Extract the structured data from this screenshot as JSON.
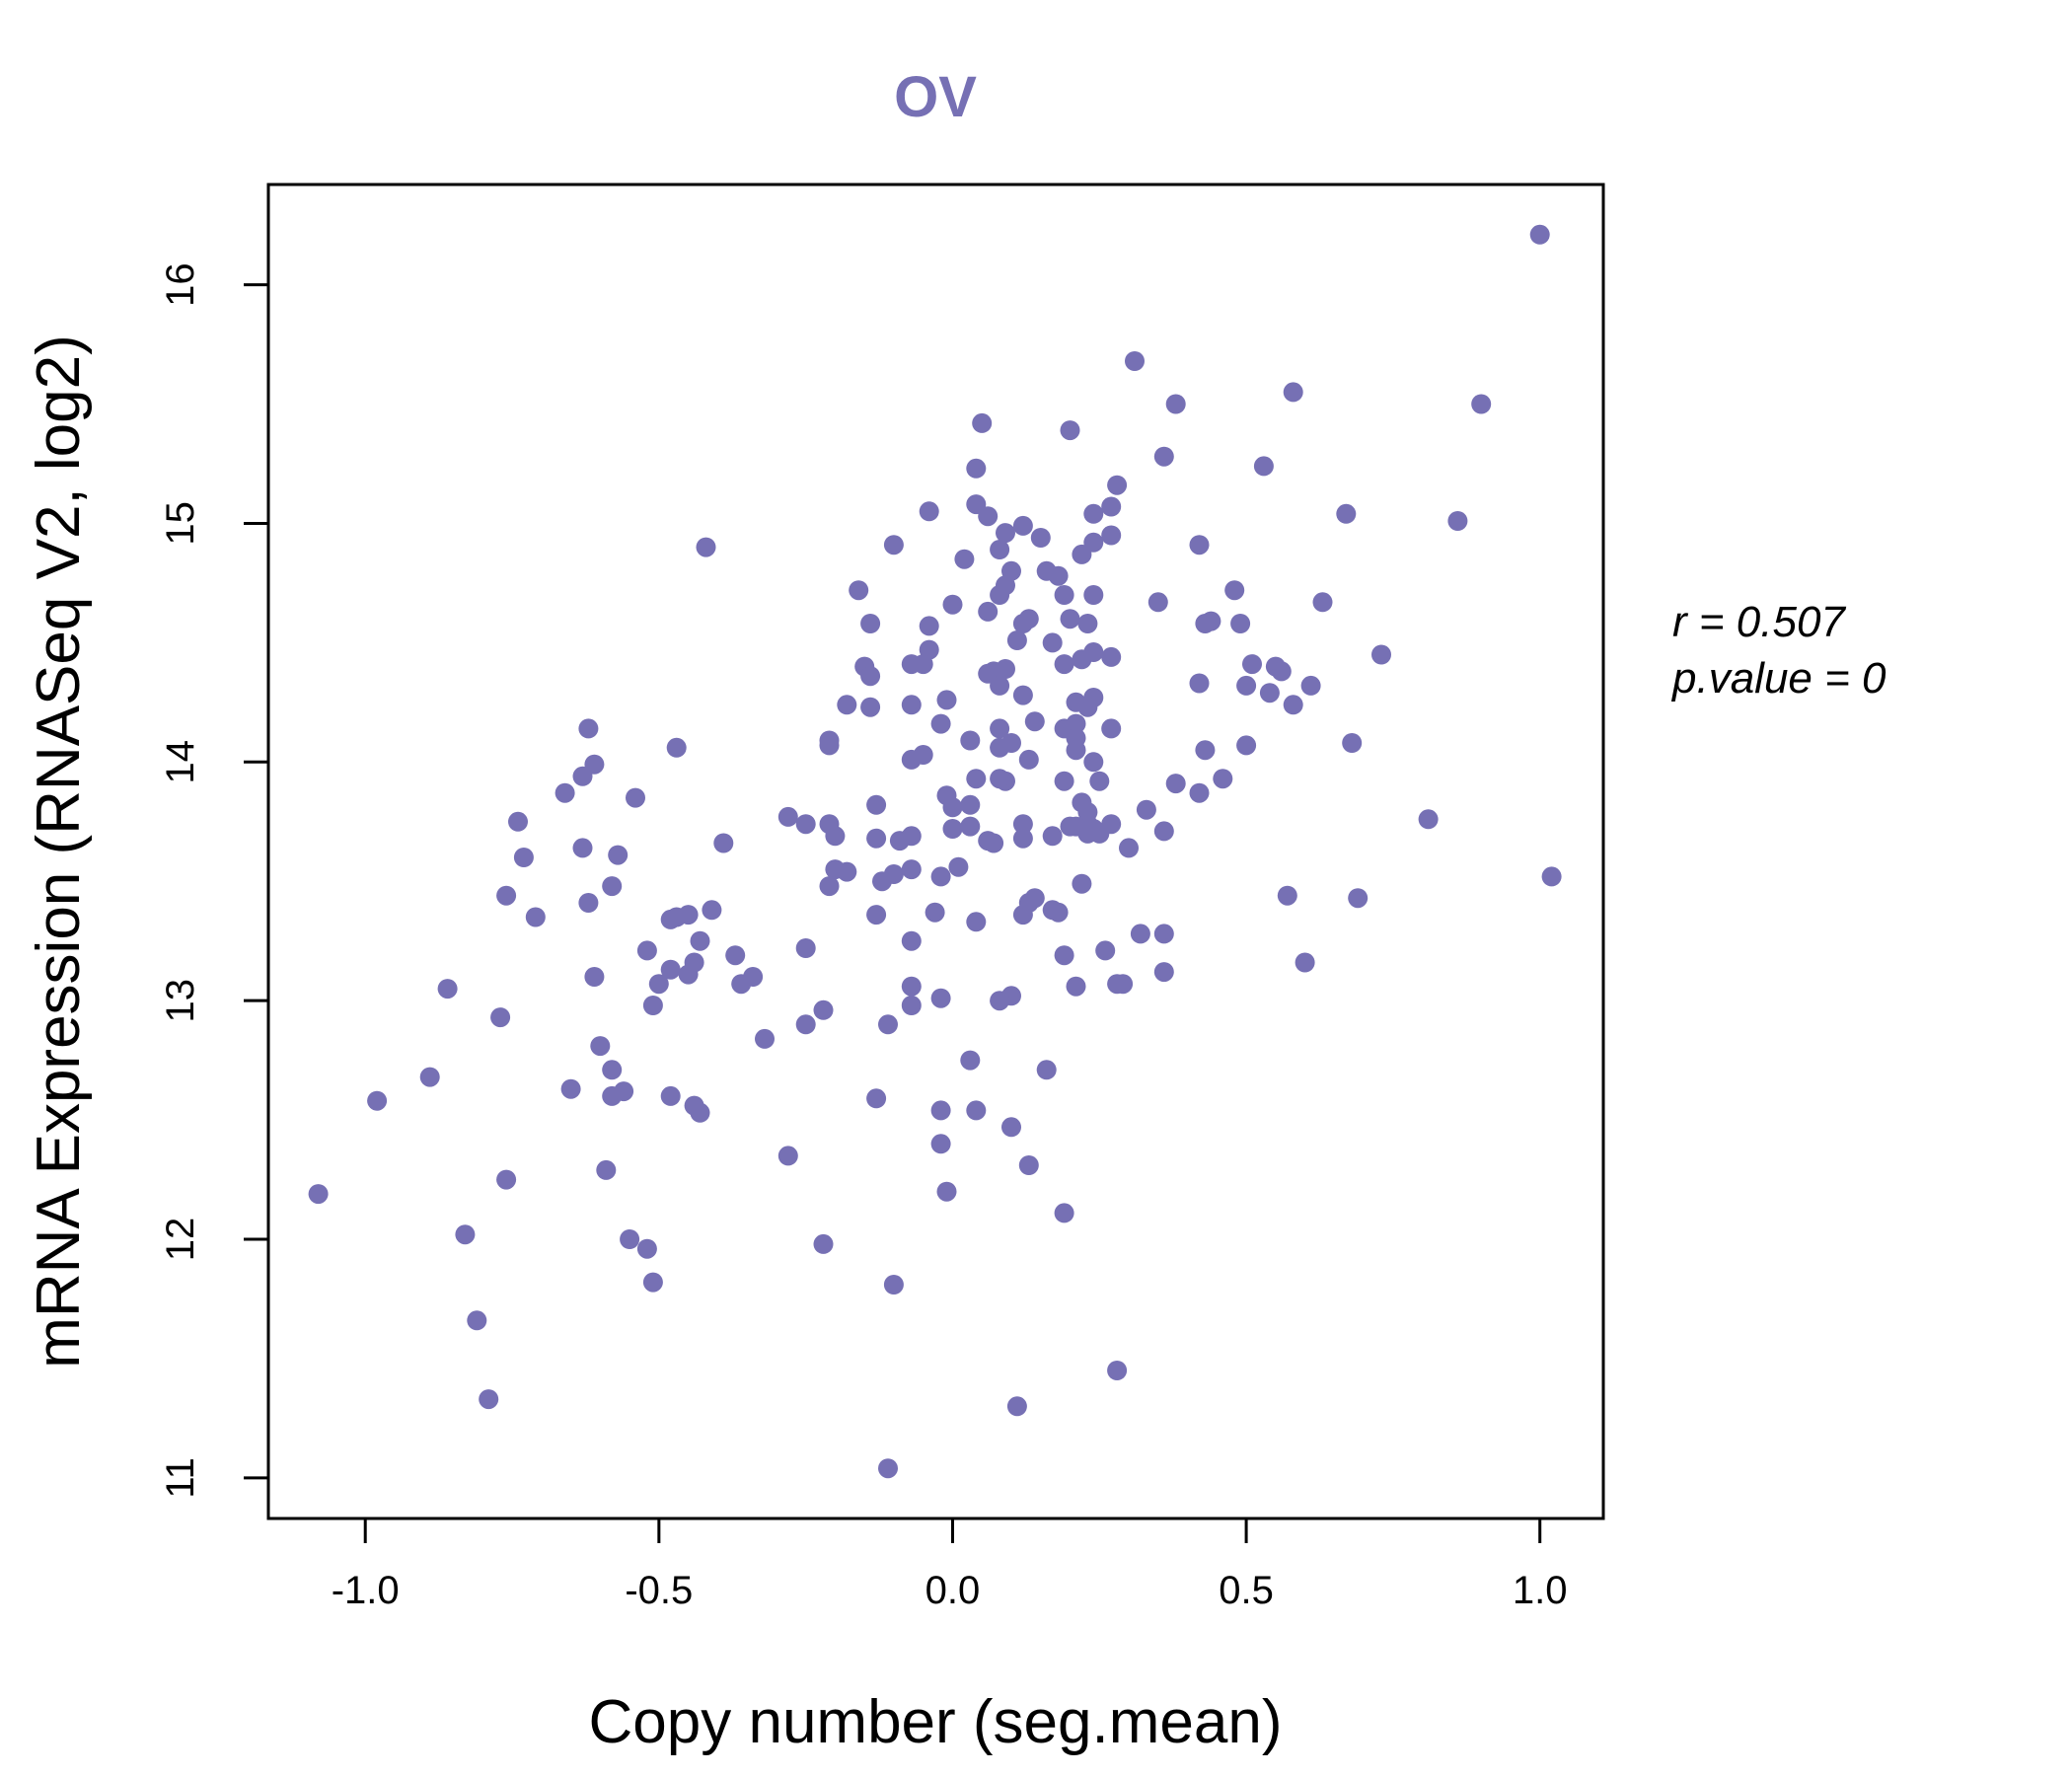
{
  "chart_data": {
    "type": "scatter",
    "title": "OV",
    "xlabel": "Copy number (seg.mean)",
    "ylabel": "mRNA Expression (RNASeq V2, log2)",
    "xlim": [
      -1.165,
      1.108
    ],
    "ylim": [
      10.83,
      16.42
    ],
    "x_ticks": [
      -1.0,
      -0.5,
      0.0,
      0.5,
      1.0
    ],
    "x_tick_labels": [
      "-1.0",
      "-0.5",
      "0.0",
      "0.5",
      "1.0"
    ],
    "y_ticks": [
      11,
      12,
      13,
      14,
      15,
      16
    ],
    "y_tick_labels": [
      "11",
      "12",
      "13",
      "14",
      "15",
      "16"
    ],
    "stats": {
      "r_label": "r = 0.507",
      "p_label": "p.value = 0"
    },
    "colors": {
      "accent": "#7670B4",
      "axis": "#000000"
    },
    "grid": false,
    "points": [
      [
        1.0,
        16.21
      ],
      [
        0.31,
        15.68
      ],
      [
        0.58,
        15.55
      ],
      [
        0.38,
        15.5
      ],
      [
        0.9,
        15.5
      ],
      [
        0.05,
        15.42
      ],
      [
        0.2,
        15.39
      ],
      [
        0.36,
        15.28
      ],
      [
        0.53,
        15.24
      ],
      [
        0.04,
        15.23
      ],
      [
        0.28,
        15.16
      ],
      [
        0.04,
        15.08
      ],
      [
        0.27,
        15.07
      ],
      [
        -0.04,
        15.05
      ],
      [
        0.24,
        15.04
      ],
      [
        0.06,
        15.03
      ],
      [
        0.67,
        15.04
      ],
      [
        0.86,
        15.01
      ],
      [
        0.12,
        14.99
      ],
      [
        0.09,
        14.96
      ],
      [
        0.27,
        14.95
      ],
      [
        0.15,
        14.94
      ],
      [
        0.24,
        14.92
      ],
      [
        0.42,
        14.91
      ],
      [
        -0.1,
        14.91
      ],
      [
        -0.42,
        14.9
      ],
      [
        0.08,
        14.89
      ],
      [
        0.22,
        14.87
      ],
      [
        0.02,
        14.85
      ],
      [
        0.1,
        14.8
      ],
      [
        0.18,
        14.78
      ],
      [
        0.16,
        14.8
      ],
      [
        0.09,
        14.74
      ],
      [
        0.48,
        14.72
      ],
      [
        0.24,
        14.7
      ],
      [
        -0.16,
        14.72
      ],
      [
        0.19,
        14.7
      ],
      [
        0.08,
        14.7
      ],
      [
        0.0,
        14.66
      ],
      [
        0.06,
        14.63
      ],
      [
        0.35,
        14.67
      ],
      [
        0.63,
        14.67
      ],
      [
        0.13,
        14.6
      ],
      [
        0.12,
        14.58
      ],
      [
        0.2,
        14.6
      ],
      [
        0.23,
        14.58
      ],
      [
        0.44,
        14.59
      ],
      [
        0.43,
        14.58
      ],
      [
        0.49,
        14.58
      ],
      [
        -0.14,
        14.58
      ],
      [
        -0.04,
        14.57
      ],
      [
        0.11,
        14.51
      ],
      [
        0.17,
        14.5
      ],
      [
        -0.04,
        14.47
      ],
      [
        0.24,
        14.46
      ],
      [
        0.27,
        14.44
      ],
      [
        0.22,
        14.43
      ],
      [
        0.19,
        14.41
      ],
      [
        0.73,
        14.45
      ],
      [
        0.51,
        14.41
      ],
      [
        -0.07,
        14.41
      ],
      [
        -0.05,
        14.41
      ],
      [
        0.09,
        14.39
      ],
      [
        0.07,
        14.38
      ],
      [
        0.55,
        14.4
      ],
      [
        0.56,
        14.38
      ],
      [
        0.06,
        14.37
      ],
      [
        0.08,
        14.32
      ],
      [
        0.42,
        14.33
      ],
      [
        0.5,
        14.32
      ],
      [
        0.61,
        14.32
      ],
      [
        0.54,
        14.29
      ],
      [
        0.12,
        14.28
      ],
      [
        0.24,
        14.27
      ],
      [
        0.21,
        14.25
      ],
      [
        0.23,
        14.23
      ],
      [
        -0.15,
        14.4
      ],
      [
        -0.14,
        14.36
      ],
      [
        -0.18,
        14.24
      ],
      [
        -0.14,
        14.23
      ],
      [
        -0.07,
        14.24
      ],
      [
        -0.01,
        14.26
      ],
      [
        0.58,
        14.24
      ],
      [
        -0.62,
        14.14
      ],
      [
        -0.21,
        14.09
      ],
      [
        -0.21,
        14.07
      ],
      [
        -0.02,
        14.16
      ],
      [
        0.08,
        14.14
      ],
      [
        0.27,
        14.14
      ],
      [
        0.21,
        14.16
      ],
      [
        0.14,
        14.17
      ],
      [
        0.19,
        14.14
      ],
      [
        0.21,
        14.1
      ],
      [
        0.03,
        14.09
      ],
      [
        0.1,
        14.08
      ],
      [
        0.08,
        14.06
      ],
      [
        0.21,
        14.05
      ],
      [
        0.43,
        14.05
      ],
      [
        0.5,
        14.07
      ],
      [
        0.68,
        14.08
      ],
      [
        -0.47,
        14.06
      ],
      [
        0.24,
        14.0
      ],
      [
        -0.05,
        14.03
      ],
      [
        0.13,
        14.01
      ],
      [
        -0.07,
        14.01
      ],
      [
        -0.61,
        13.99
      ],
      [
        -0.63,
        13.94
      ],
      [
        0.04,
        13.93
      ],
      [
        0.09,
        13.92
      ],
      [
        0.08,
        13.93
      ],
      [
        0.25,
        13.92
      ],
      [
        0.38,
        13.91
      ],
      [
        0.46,
        13.93
      ],
      [
        0.42,
        13.87
      ],
      [
        0.19,
        13.92
      ],
      [
        -0.66,
        13.87
      ],
      [
        -0.54,
        13.85
      ],
      [
        -0.01,
        13.86
      ],
      [
        0.22,
        13.83
      ],
      [
        0.03,
        13.82
      ],
      [
        -0.13,
        13.82
      ],
      [
        0.0,
        13.81
      ],
      [
        0.33,
        13.8
      ],
      [
        0.23,
        13.79
      ],
      [
        0.81,
        13.76
      ],
      [
        -0.74,
        13.75
      ],
      [
        -0.28,
        13.77
      ],
      [
        -0.25,
        13.74
      ],
      [
        -0.21,
        13.74
      ],
      [
        0.2,
        13.73
      ],
      [
        0.27,
        13.74
      ],
      [
        0.23,
        13.74
      ],
      [
        0.12,
        13.74
      ],
      [
        0.36,
        13.71
      ],
      [
        0.03,
        13.73
      ],
      [
        0.0,
        13.72
      ],
      [
        0.24,
        13.72
      ],
      [
        -0.2,
        13.69
      ],
      [
        0.17,
        13.69
      ],
      [
        0.12,
        13.68
      ],
      [
        0.06,
        13.67
      ],
      [
        0.07,
        13.66
      ],
      [
        0.21,
        13.73
      ],
      [
        0.23,
        13.7
      ],
      [
        0.25,
        13.7
      ],
      [
        0.3,
        13.64
      ],
      [
        -0.13,
        13.68
      ],
      [
        -0.07,
        13.69
      ],
      [
        -0.09,
        13.67
      ],
      [
        -0.39,
        13.66
      ],
      [
        -0.63,
        13.64
      ],
      [
        -0.57,
        13.61
      ],
      [
        -0.73,
        13.6
      ],
      [
        -0.2,
        13.55
      ],
      [
        -0.21,
        13.48
      ],
      [
        -0.18,
        13.54
      ],
      [
        -0.07,
        13.55
      ],
      [
        0.01,
        13.56
      ],
      [
        -0.1,
        13.53
      ],
      [
        -0.02,
        13.52
      ],
      [
        0.22,
        13.49
      ],
      [
        -0.12,
        13.5
      ],
      [
        -0.58,
        13.48
      ],
      [
        -0.62,
        13.41
      ],
      [
        -0.76,
        13.44
      ],
      [
        0.57,
        13.44
      ],
      [
        0.69,
        13.43
      ],
      [
        1.02,
        13.52
      ],
      [
        0.14,
        13.43
      ],
      [
        0.12,
        13.36
      ],
      [
        0.13,
        13.41
      ],
      [
        0.17,
        13.38
      ],
      [
        0.18,
        13.37
      ],
      [
        -0.41,
        13.38
      ],
      [
        -0.45,
        13.36
      ],
      [
        -0.47,
        13.35
      ],
      [
        -0.48,
        13.34
      ],
      [
        -0.71,
        13.35
      ],
      [
        -0.13,
        13.36
      ],
      [
        -0.03,
        13.37
      ],
      [
        0.04,
        13.33
      ],
      [
        0.32,
        13.28
      ],
      [
        0.36,
        13.28
      ],
      [
        -0.43,
        13.25
      ],
      [
        -0.52,
        13.21
      ],
      [
        -0.25,
        13.22
      ],
      [
        -0.07,
        13.25
      ],
      [
        0.26,
        13.21
      ],
      [
        0.19,
        13.19
      ],
      [
        -0.37,
        13.19
      ],
      [
        0.6,
        13.16
      ],
      [
        -0.48,
        13.13
      ],
      [
        -0.45,
        13.11
      ],
      [
        -0.44,
        13.16
      ],
      [
        -0.34,
        13.1
      ],
      [
        -0.36,
        13.07
      ],
      [
        -0.5,
        13.07
      ],
      [
        -0.61,
        13.1
      ],
      [
        -0.86,
        13.05
      ],
      [
        0.36,
        13.12
      ],
      [
        0.28,
        13.07
      ],
      [
        0.29,
        13.07
      ],
      [
        0.21,
        13.06
      ],
      [
        -0.07,
        13.06
      ],
      [
        -0.02,
        13.01
      ],
      [
        0.1,
        13.02
      ],
      [
        0.08,
        13.0
      ],
      [
        -0.07,
        12.98
      ],
      [
        -0.51,
        12.98
      ],
      [
        -0.77,
        12.93
      ],
      [
        -0.22,
        12.96
      ],
      [
        -0.25,
        12.9
      ],
      [
        -0.11,
        12.9
      ],
      [
        -0.32,
        12.84
      ],
      [
        -0.6,
        12.81
      ],
      [
        0.03,
        12.75
      ],
      [
        0.16,
        12.71
      ],
      [
        -0.58,
        12.71
      ],
      [
        -0.89,
        12.68
      ],
      [
        -0.65,
        12.63
      ],
      [
        -0.56,
        12.62
      ],
      [
        -0.58,
        12.6
      ],
      [
        -0.48,
        12.6
      ],
      [
        -0.44,
        12.56
      ],
      [
        -0.43,
        12.53
      ],
      [
        -0.13,
        12.59
      ],
      [
        -0.98,
        12.58
      ],
      [
        -0.02,
        12.54
      ],
      [
        0.04,
        12.54
      ],
      [
        0.1,
        12.47
      ],
      [
        -0.02,
        12.4
      ],
      [
        -0.28,
        12.35
      ],
      [
        0.13,
        12.31
      ],
      [
        -0.59,
        12.29
      ],
      [
        -0.76,
        12.25
      ],
      [
        -0.01,
        12.2
      ],
      [
        -1.08,
        12.19
      ],
      [
        0.19,
        12.11
      ],
      [
        -0.83,
        12.02
      ],
      [
        -0.55,
        12.0
      ],
      [
        -0.52,
        11.96
      ],
      [
        -0.22,
        11.98
      ],
      [
        -0.51,
        11.82
      ],
      [
        -0.1,
        11.81
      ],
      [
        -0.81,
        11.66
      ],
      [
        0.28,
        11.45
      ],
      [
        -0.79,
        11.33
      ],
      [
        0.11,
        11.3
      ],
      [
        -0.11,
        11.04
      ]
    ]
  }
}
